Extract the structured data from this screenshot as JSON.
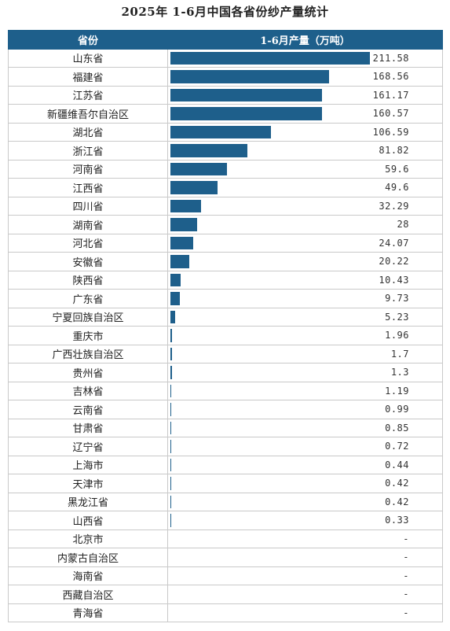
{
  "title": "2025年 1-6月中国各省份纱产量统计",
  "headers": {
    "province": "省份",
    "production": "1-6月产量（万吨）"
  },
  "chart_data": {
    "type": "bar",
    "title": "2025年 1-6月中国各省份纱产量统计",
    "xlabel": "",
    "ylabel": "1-6月产量（万吨）",
    "categories": [
      "山东省",
      "福建省",
      "江苏省",
      "新疆维吾尔自治区",
      "湖北省",
      "浙江省",
      "河南省",
      "江西省",
      "四川省",
      "湖南省",
      "河北省",
      "安徽省",
      "陕西省",
      "广东省",
      "宁夏回族自治区",
      "重庆市",
      "广西壮族自治区",
      "贵州省",
      "吉林省",
      "云南省",
      "甘肃省",
      "辽宁省",
      "上海市",
      "天津市",
      "黑龙江省",
      "山西省",
      "北京市",
      "内蒙古自治区",
      "海南省",
      "西藏自治区",
      "青海省"
    ],
    "values": [
      211.58,
      168.56,
      161.17,
      160.57,
      106.59,
      81.82,
      59.6,
      49.6,
      32.29,
      28,
      24.07,
      20.22,
      10.43,
      9.73,
      5.23,
      1.96,
      1.7,
      1.3,
      1.19,
      0.99,
      0.85,
      0.72,
      0.44,
      0.42,
      0.42,
      0.33,
      null,
      null,
      null,
      null,
      null
    ],
    "labels": [
      "211.58",
      "168.56",
      "161.17",
      "160.57",
      "106.59",
      "81.82",
      "59.6",
      "49.6",
      "32.29",
      "28",
      "24.07",
      "20.22",
      "10.43",
      "9.73",
      "5.23",
      "1.96",
      "1.7",
      "1.3",
      "1.19",
      "0.99",
      "0.85",
      "0.72",
      "0.44",
      "0.42",
      "0.42",
      "0.33",
      "-",
      "-",
      "-",
      "-",
      "-"
    ],
    "color": "#1e5f8b",
    "header_color": "#1e5f8b"
  }
}
